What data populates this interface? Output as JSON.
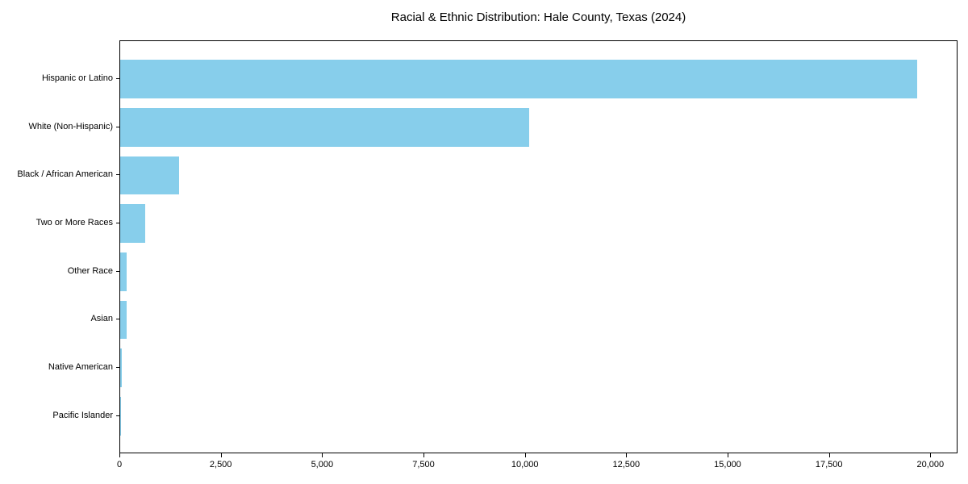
{
  "chart_data": {
    "type": "bar",
    "orientation": "horizontal",
    "title": "Racial & Ethnic Distribution: Hale County, Texas (2024)",
    "categories": [
      "Hispanic or Latino",
      "White (Non-Hispanic)",
      "Black / African American",
      "Two or More Races",
      "Other Race",
      "Asian",
      "Native American",
      "Pacific Islander"
    ],
    "values": [
      19660,
      10090,
      1450,
      610,
      155,
      165,
      40,
      10
    ],
    "xlabel": "",
    "ylabel": "",
    "xlim": [
      0,
      20670
    ],
    "x_ticks": [
      0,
      2500,
      5000,
      7500,
      10000,
      12500,
      15000,
      17500,
      20000
    ],
    "x_tick_labels": [
      "0",
      "2,500",
      "5,000",
      "7,500",
      "10,000",
      "12,500",
      "15,000",
      "17,500",
      "20,000"
    ],
    "bar_color": "#87CEEB",
    "axis_color": "#000000",
    "grid": false,
    "legend": null
  }
}
